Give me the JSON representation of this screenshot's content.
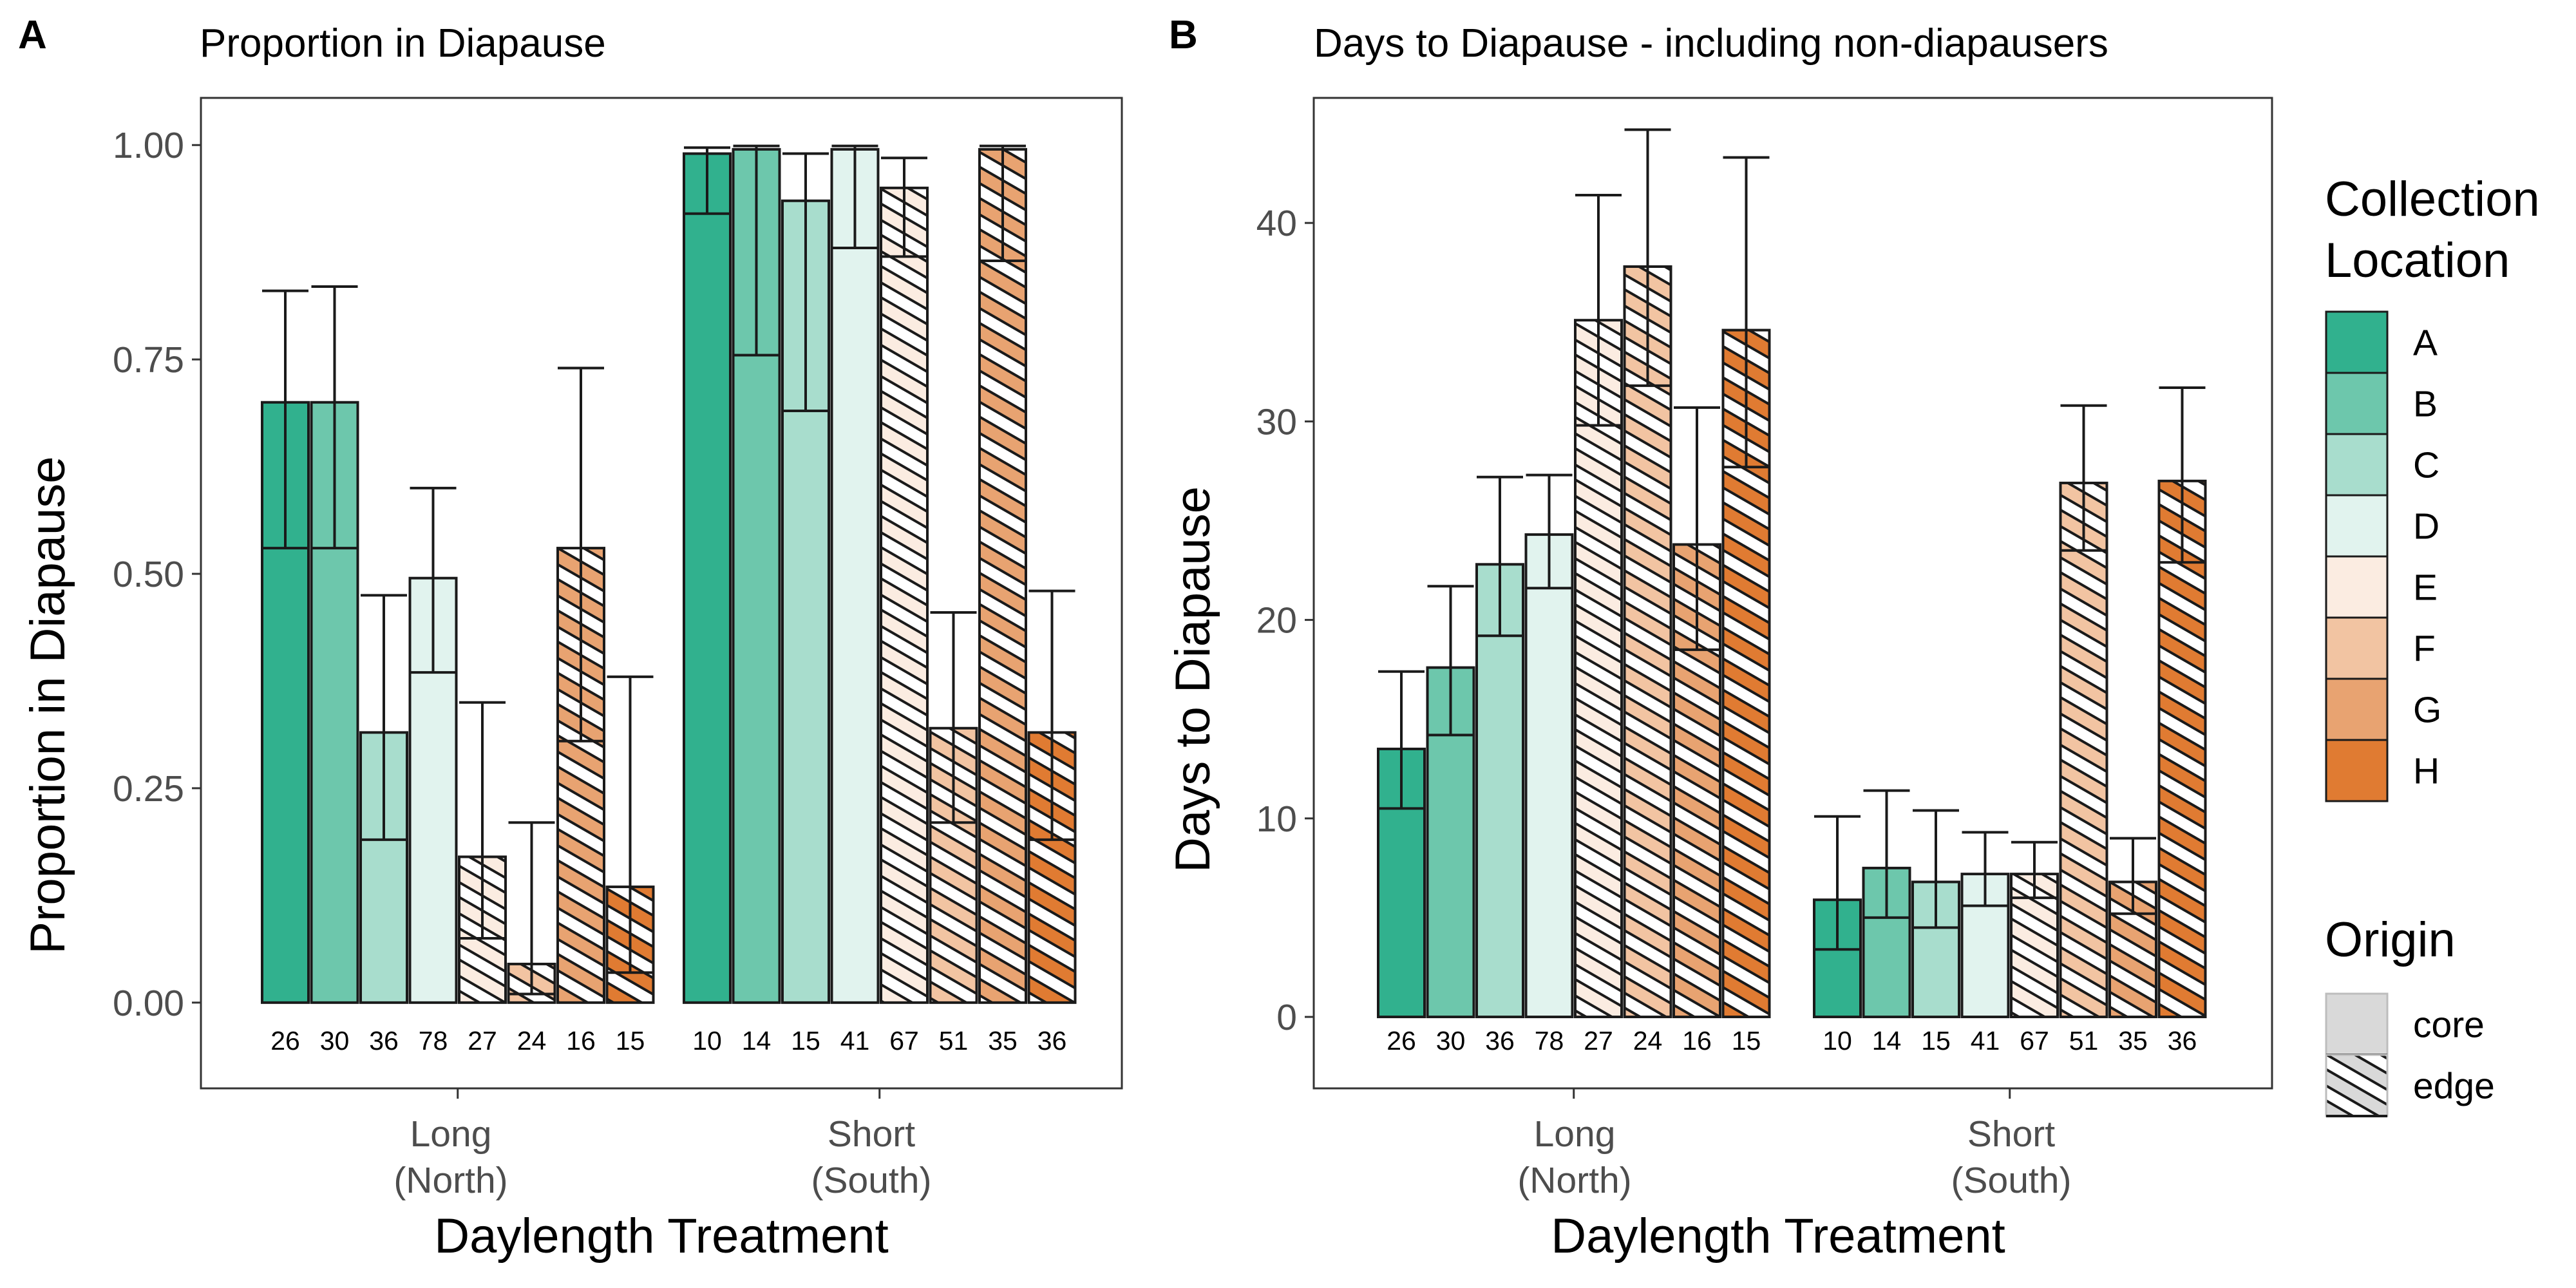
{
  "colors": {
    "A": "#31b18e",
    "B": "#6dc7ac",
    "C": "#a8ddcd",
    "D": "#e1f3ee",
    "E": "#fbece1",
    "F": "#f2c4a2",
    "G": "#e8a371",
    "H": "#e07b32",
    "outline": "#1a1a1a",
    "panel_border": "#333333",
    "legend_key": "#d9d9d9"
  },
  "legend": {
    "location_title_line1": "Collection",
    "location_title_line2": "Location",
    "locations": [
      "A",
      "B",
      "C",
      "D",
      "E",
      "F",
      "G",
      "H"
    ],
    "origin_title": "Origin",
    "origins": [
      {
        "label": "core",
        "pattern": "none"
      },
      {
        "label": "edge",
        "pattern": "stripe"
      }
    ]
  },
  "chart_data": [
    {
      "type": "bar",
      "panel_tag": "A",
      "title": "Proportion in Diapause",
      "xlabel": "Daylength Treatment",
      "ylabel": "Proportion in Diapause",
      "ylim": [
        -0.1,
        1.055
      ],
      "yticks": [
        "0.00",
        "0.25",
        "0.50",
        "0.75",
        "1.00"
      ],
      "ytick_values": [
        0,
        0.25,
        0.5,
        0.75,
        1.0
      ],
      "groups": [
        {
          "label_line1": "Long",
          "label_line2": "(North)"
        },
        {
          "label_line1": "Short",
          "label_line2": "(South)"
        }
      ],
      "bars": [
        {
          "group": 0,
          "location": "A",
          "origin": "core",
          "value": 0.7,
          "lo": 0.53,
          "hi": 0.83,
          "n": "26"
        },
        {
          "group": 0,
          "location": "B",
          "origin": "core",
          "value": 0.7,
          "lo": 0.53,
          "hi": 0.835,
          "n": "30"
        },
        {
          "group": 0,
          "location": "C",
          "origin": "core",
          "value": 0.315,
          "lo": 0.19,
          "hi": 0.475,
          "n": "36"
        },
        {
          "group": 0,
          "location": "D",
          "origin": "core",
          "value": 0.495,
          "lo": 0.385,
          "hi": 0.6,
          "n": "78"
        },
        {
          "group": 0,
          "location": "E",
          "origin": "edge",
          "value": 0.17,
          "lo": 0.075,
          "hi": 0.35,
          "n": "27"
        },
        {
          "group": 0,
          "location": "F",
          "origin": "edge",
          "value": 0.045,
          "lo": 0.01,
          "hi": 0.21,
          "n": "24"
        },
        {
          "group": 0,
          "location": "G",
          "origin": "edge",
          "value": 0.53,
          "lo": 0.305,
          "hi": 0.74,
          "n": "16"
        },
        {
          "group": 0,
          "location": "H",
          "origin": "edge",
          "value": 0.135,
          "lo": 0.035,
          "hi": 0.38,
          "n": "15"
        },
        {
          "group": 1,
          "location": "A",
          "origin": "core",
          "value": 0.99,
          "lo": 0.92,
          "hi": 0.997,
          "n": "10"
        },
        {
          "group": 1,
          "location": "B",
          "origin": "core",
          "value": 0.995,
          "lo": 0.755,
          "hi": 0.999,
          "n": "14"
        },
        {
          "group": 1,
          "location": "C",
          "origin": "core",
          "value": 0.935,
          "lo": 0.69,
          "hi": 0.99,
          "n": "15"
        },
        {
          "group": 1,
          "location": "D",
          "origin": "core",
          "value": 0.995,
          "lo": 0.88,
          "hi": 0.999,
          "n": "41"
        },
        {
          "group": 1,
          "location": "E",
          "origin": "edge",
          "value": 0.95,
          "lo": 0.87,
          "hi": 0.985,
          "n": "67"
        },
        {
          "group": 1,
          "location": "F",
          "origin": "edge",
          "value": 0.32,
          "lo": 0.21,
          "hi": 0.455,
          "n": "51"
        },
        {
          "group": 1,
          "location": "G",
          "origin": "edge",
          "value": 0.995,
          "lo": 0.865,
          "hi": 0.999,
          "n": "35"
        },
        {
          "group": 1,
          "location": "H",
          "origin": "edge",
          "value": 0.315,
          "lo": 0.19,
          "hi": 0.48,
          "n": "36"
        }
      ]
    },
    {
      "type": "bar",
      "panel_tag": "B",
      "title": "Days to Diapause - including non-diapausers",
      "xlabel": "Daylength Treatment",
      "ylabel": "Days to Diapause",
      "ylim": [
        -3.6,
        46.3
      ],
      "yticks": [
        "0",
        "10",
        "20",
        "30",
        "40"
      ],
      "ytick_values": [
        0,
        10,
        20,
        30,
        40
      ],
      "groups": [
        {
          "label_line1": "Long",
          "label_line2": "(North)"
        },
        {
          "label_line1": "Short",
          "label_line2": "(South)"
        }
      ],
      "bars": [
        {
          "group": 0,
          "location": "A",
          "origin": "core",
          "value": 13.5,
          "lo": 10.5,
          "hi": 17.4,
          "n": "26"
        },
        {
          "group": 0,
          "location": "B",
          "origin": "core",
          "value": 17.6,
          "lo": 14.2,
          "hi": 21.7,
          "n": "30"
        },
        {
          "group": 0,
          "location": "C",
          "origin": "core",
          "value": 22.8,
          "lo": 19.2,
          "hi": 27.2,
          "n": "36"
        },
        {
          "group": 0,
          "location": "D",
          "origin": "core",
          "value": 24.3,
          "lo": 21.6,
          "hi": 27.3,
          "n": "78"
        },
        {
          "group": 0,
          "location": "E",
          "origin": "edge",
          "value": 35.1,
          "lo": 29.8,
          "hi": 41.4,
          "n": "27"
        },
        {
          "group": 0,
          "location": "F",
          "origin": "edge",
          "value": 37.8,
          "lo": 31.8,
          "hi": 44.7,
          "n": "24"
        },
        {
          "group": 0,
          "location": "G",
          "origin": "edge",
          "value": 23.8,
          "lo": 18.5,
          "hi": 30.7,
          "n": "16"
        },
        {
          "group": 0,
          "location": "H",
          "origin": "edge",
          "value": 34.6,
          "lo": 27.7,
          "hi": 43.3,
          "n": "15"
        },
        {
          "group": 1,
          "location": "A",
          "origin": "core",
          "value": 5.9,
          "lo": 3.4,
          "hi": 10.1,
          "n": "10"
        },
        {
          "group": 1,
          "location": "B",
          "origin": "core",
          "value": 7.5,
          "lo": 5.0,
          "hi": 11.4,
          "n": "14"
        },
        {
          "group": 1,
          "location": "C",
          "origin": "core",
          "value": 6.8,
          "lo": 4.5,
          "hi": 10.4,
          "n": "15"
        },
        {
          "group": 1,
          "location": "D",
          "origin": "core",
          "value": 7.2,
          "lo": 5.6,
          "hi": 9.3,
          "n": "41"
        },
        {
          "group": 1,
          "location": "E",
          "origin": "edge",
          "value": 7.2,
          "lo": 6.0,
          "hi": 8.8,
          "n": "67"
        },
        {
          "group": 1,
          "location": "F",
          "origin": "edge",
          "value": 26.9,
          "lo": 23.5,
          "hi": 30.8,
          "n": "51"
        },
        {
          "group": 1,
          "location": "G",
          "origin": "edge",
          "value": 6.8,
          "lo": 5.2,
          "hi": 9.0,
          "n": "35"
        },
        {
          "group": 1,
          "location": "H",
          "origin": "edge",
          "value": 27.0,
          "lo": 22.9,
          "hi": 31.7,
          "n": "36"
        }
      ]
    }
  ]
}
